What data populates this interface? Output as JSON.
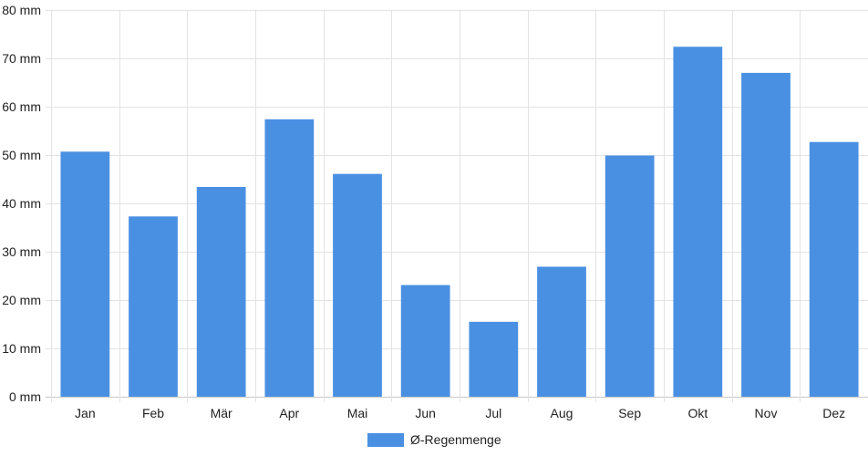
{
  "chart_data": {
    "type": "bar",
    "categories": [
      "Jan",
      "Feb",
      "Mär",
      "Apr",
      "Mai",
      "Jun",
      "Jul",
      "Aug",
      "Sep",
      "Okt",
      "Nov",
      "Dez"
    ],
    "series": [
      {
        "name": "Ø-Regenmenge",
        "color": "#4a90e2",
        "values": [
          50.7,
          37.3,
          43.4,
          57.4,
          46.1,
          23.1,
          15.5,
          26.9,
          49.9,
          72.4,
          67.0,
          52.7
        ]
      }
    ],
    "y_unit": "mm",
    "ylim": [
      0,
      80
    ],
    "y_ticks": [
      0,
      10,
      20,
      30,
      40,
      50,
      60,
      70,
      80
    ],
    "grid": true,
    "legend_position": "bottom"
  }
}
